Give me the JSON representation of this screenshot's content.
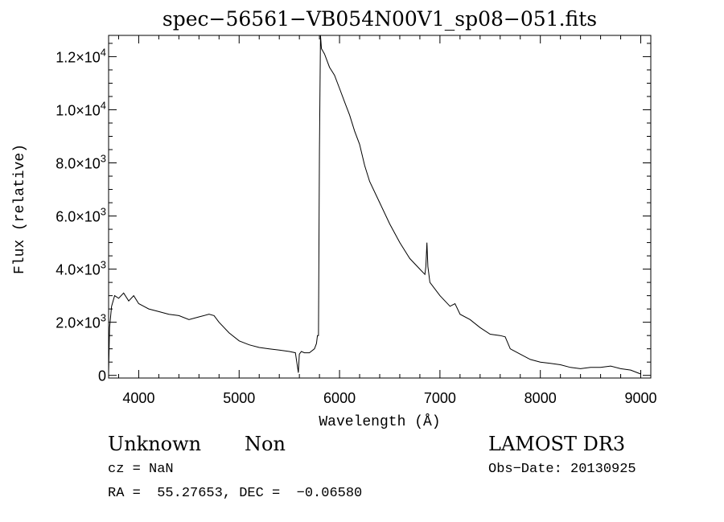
{
  "chart_data": {
    "type": "line",
    "title": "spec−56561−VB054N00V1_sp08−051.fits",
    "xlabel": "Wavelength (Å)",
    "ylabel": "Flux (relative)",
    "xlim": [
      3700,
      9100
    ],
    "ylim": [
      -100,
      12800
    ],
    "x_ticks": [
      4000,
      5000,
      6000,
      7000,
      8000,
      9000
    ],
    "y_ticks": [
      {
        "value": 0,
        "mantissa": "0",
        "exp": ""
      },
      {
        "value": 2000,
        "mantissa": "2.0×10",
        "exp": "3"
      },
      {
        "value": 4000,
        "mantissa": "4.0×10",
        "exp": "3"
      },
      {
        "value": 6000,
        "mantissa": "6.0×10",
        "exp": "3"
      },
      {
        "value": 8000,
        "mantissa": "8.0×10",
        "exp": "3"
      },
      {
        "value": 10000,
        "mantissa": "1.0×10",
        "exp": "4"
      },
      {
        "value": 12000,
        "mantissa": "1.2×10",
        "exp": "4"
      }
    ],
    "grid": false,
    "series": [
      {
        "x": [
          3700,
          3710,
          3730,
          3760,
          3800,
          3850,
          3900,
          3950,
          4000,
          4100,
          4200,
          4300,
          4400,
          4500,
          4600,
          4700,
          4750,
          4800,
          4900,
          5000,
          5100,
          5200,
          5300,
          5400,
          5500,
          5560,
          5590,
          5600,
          5620,
          5650,
          5700,
          5750,
          5770,
          5780,
          5790,
          5800,
          5810,
          5820,
          5850,
          5900,
          5950,
          6000,
          6050,
          6100,
          6150,
          6200,
          6250,
          6300,
          6400,
          6500,
          6600,
          6700,
          6800,
          6850,
          6860,
          6870,
          6880,
          6900,
          7000,
          7100,
          7150,
          7200,
          7300,
          7400,
          7500,
          7600,
          7650,
          7700,
          7800,
          7900,
          8000,
          8100,
          8200,
          8300,
          8400,
          8500,
          8600,
          8700,
          8800,
          8900,
          9000
        ],
        "y": [
          100,
          1800,
          2600,
          3000,
          2900,
          3100,
          2800,
          3000,
          2700,
          2500,
          2400,
          2300,
          2250,
          2100,
          2200,
          2300,
          2250,
          2000,
          1600,
          1300,
          1150,
          1050,
          1000,
          950,
          900,
          850,
          100,
          800,
          900,
          850,
          850,
          1000,
          1200,
          1500,
          1500,
          8500,
          12900,
          12300,
          12100,
          11600,
          11300,
          10800,
          10300,
          9800,
          9200,
          8700,
          7900,
          7300,
          6500,
          5700,
          5000,
          4400,
          4000,
          3800,
          4100,
          5000,
          4100,
          3500,
          3000,
          2600,
          2700,
          2300,
          2100,
          1800,
          1550,
          1500,
          1450,
          1000,
          800,
          600,
          500,
          450,
          400,
          300,
          250,
          300,
          300,
          350,
          250,
          200,
          50
        ]
      }
    ]
  },
  "footer": {
    "object_class": "Unknown",
    "object_subclass": "Non",
    "cz": "cz = NaN",
    "radec": "RA =  55.27653, DEC =  −0.06580",
    "survey": "LAMOST DR3",
    "obs_date": "Obs−Date: 20130925"
  }
}
